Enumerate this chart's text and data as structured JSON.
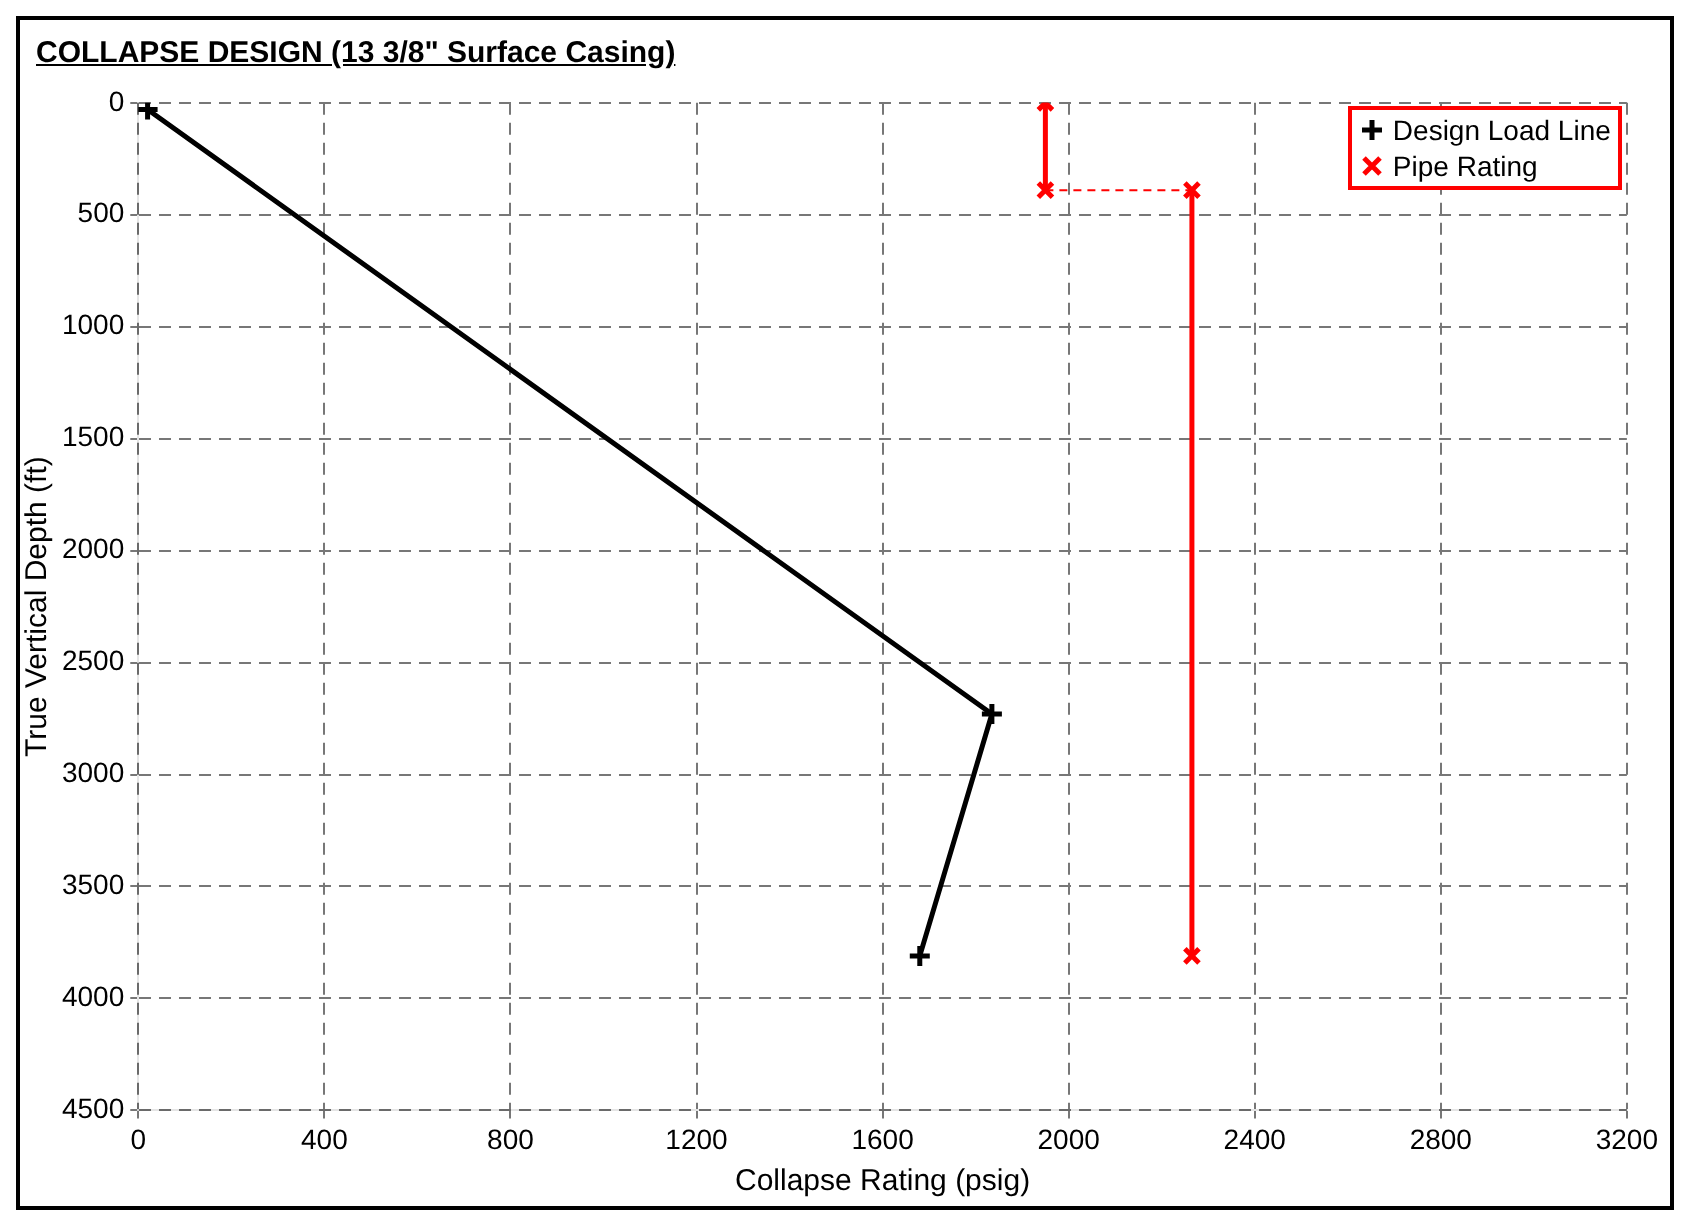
{
  "chart_data": {
    "type": "line",
    "title": "COLLAPSE DESIGN (13 3/8\" Surface Casing)",
    "xlabel": "Collapse Rating (psig)",
    "ylabel": "True Vertical Depth (ft)",
    "xlim": [
      0,
      3200
    ],
    "xticks": [
      0,
      400,
      800,
      1200,
      1600,
      2000,
      2400,
      2800,
      3200
    ],
    "ylim": [
      4500,
      0
    ],
    "yticks": [
      0,
      500,
      1000,
      1500,
      2000,
      2500,
      3000,
      3500,
      4000,
      4500
    ],
    "grid": true,
    "legend": "top right",
    "series": [
      {
        "name": "Design Load Line",
        "color": "#000000",
        "marker": "cross",
        "x": [
          20,
          1835,
          1680
        ],
        "values": [
          30,
          2730,
          3810
        ]
      },
      {
        "name": "Pipe Rating",
        "color": "#ff0000",
        "marker": "crossRot",
        "x": [
          1950,
          1950,
          2265,
          2265
        ],
        "values": [
          0,
          390,
          390,
          3810
        ]
      }
    ]
  }
}
